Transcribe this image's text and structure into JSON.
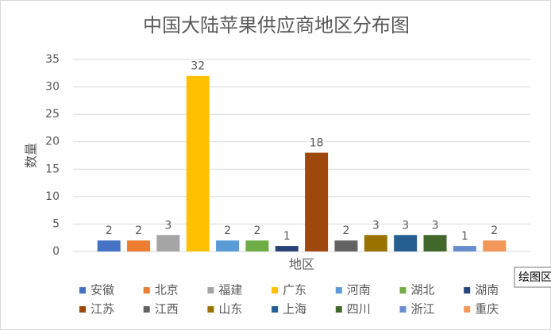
{
  "chart_data": {
    "type": "bar",
    "title": "中国大陆苹果供应商地区分布图",
    "x_label": "地区",
    "y_label": "数量",
    "categories": [
      "安徽",
      "北京",
      "福建",
      "广东",
      "河南",
      "湖北",
      "湖南",
      "江苏",
      "江西",
      "山东",
      "上海",
      "四川",
      "浙江",
      "重庆"
    ],
    "values": [
      2,
      2,
      3,
      32,
      2,
      2,
      1,
      18,
      2,
      3,
      3,
      3,
      1,
      2
    ],
    "colors": [
      "#4472c4",
      "#ed7d31",
      "#a5a5a5",
      "#ffc000",
      "#5b9bd5",
      "#70ad47",
      "#264478",
      "#9e480e",
      "#636363",
      "#997300",
      "#255e91",
      "#43682b",
      "#698ed0",
      "#f1975a"
    ],
    "ylim": [
      0,
      35
    ],
    "yticks": [
      0,
      5,
      10,
      15,
      20,
      25,
      30,
      35
    ],
    "grid": true,
    "data_labels": true,
    "legend": "bottom",
    "tooltip": "绘图区"
  }
}
